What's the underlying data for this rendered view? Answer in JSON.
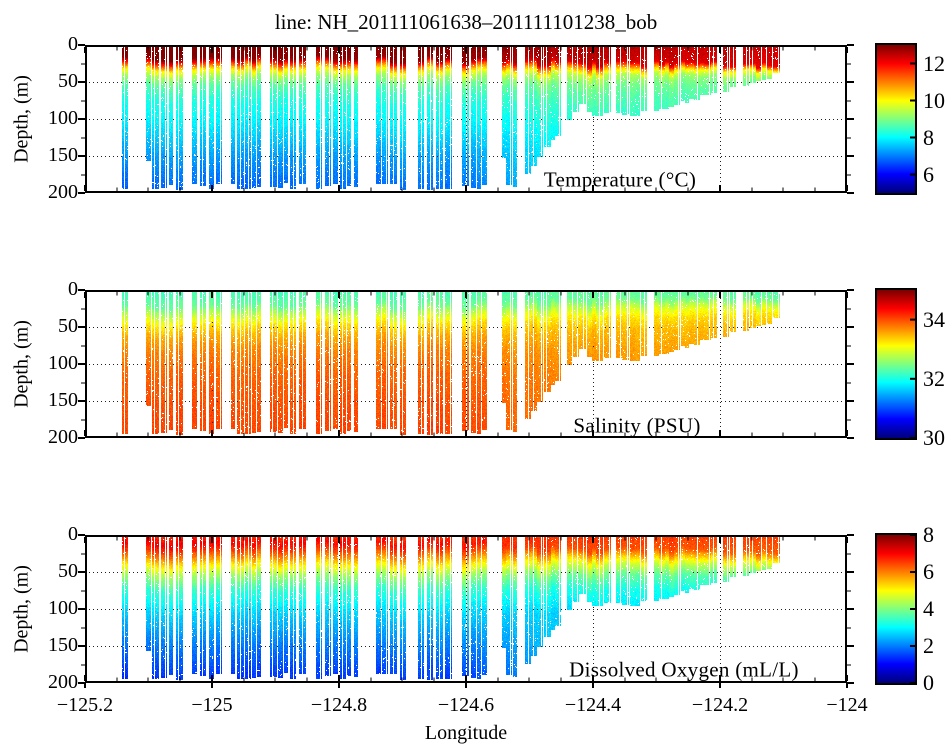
{
  "title": "line: NH_201111061638–201111101238_bob",
  "axes": {
    "xlabel": "Longitude",
    "ylabel": "Depth, (m)",
    "x_ticks": [
      -125.2,
      -125.0,
      -124.8,
      -124.6,
      -124.4,
      -124.2,
      -124.0
    ],
    "x_tick_labels": [
      "−125.2",
      "−125",
      "−124.8",
      "−124.6",
      "−124.4",
      "−124.2",
      "−124"
    ],
    "x_range": [
      -125.2,
      -124.0
    ],
    "y_ticks": [
      0,
      50,
      100,
      150,
      200
    ],
    "y_tick_labels": [
      "0",
      "50",
      "100",
      "150",
      "200"
    ],
    "y_range": [
      0,
      200
    ],
    "grid": "dotted",
    "background": "#ffffff",
    "axis_color": "#000000"
  },
  "section": {
    "lon_start": -125.142,
    "lon_end": -124.108,
    "bathymetry": [
      [
        -125.15,
        191
      ],
      [
        -125.05,
        192
      ],
      [
        -124.95,
        190
      ],
      [
        -124.85,
        191
      ],
      [
        -124.75,
        192
      ],
      [
        -124.65,
        191
      ],
      [
        -124.55,
        190
      ],
      [
        -124.52,
        188
      ],
      [
        -124.5,
        172
      ],
      [
        -124.475,
        140
      ],
      [
        -124.45,
        116
      ],
      [
        -124.43,
        96
      ],
      [
        -124.418,
        80
      ],
      [
        -124.408,
        86
      ],
      [
        -124.398,
        96
      ],
      [
        -124.38,
        93
      ],
      [
        -124.355,
        90
      ],
      [
        -124.335,
        92
      ],
      [
        -124.315,
        90
      ],
      [
        -124.295,
        87
      ],
      [
        -124.27,
        80
      ],
      [
        -124.245,
        73
      ],
      [
        -124.22,
        67
      ],
      [
        -124.195,
        60
      ],
      [
        -124.17,
        54
      ],
      [
        -124.15,
        50
      ],
      [
        -124.13,
        46
      ],
      [
        -124.115,
        41
      ],
      [
        -124.108,
        38
      ]
    ],
    "gaps": [
      [
        -125.1244,
        -125.1102
      ],
      [
        -125.0472,
        -125.0346
      ],
      [
        -124.9843,
        -124.9717
      ],
      [
        -124.9213,
        -124.9071
      ],
      [
        -124.8551,
        -124.8409
      ],
      [
        -124.7685,
        -124.7402
      ],
      [
        -124.6866,
        -124.674
      ],
      [
        -124.6252,
        -124.6126
      ],
      [
        -124.5638,
        -124.548
      ],
      [
        -124.515,
        -124.5039
      ],
      [
        -124.4551,
        -124.4425
      ],
      [
        -124.3764,
        -124.3669
      ],
      [
        -124.3165,
        -124.3055
      ],
      [
        -124.266,
        -124.2614
      ],
      [
        -124.2031,
        -124.1953
      ],
      [
        -124.1701,
        -124.1622
      ]
    ]
  },
  "chart_data": [
    {
      "type": "heatmap",
      "variable": "temperature",
      "label": "Temperature (°C)",
      "colormap": "jet",
      "clim": [
        5,
        13
      ],
      "colorbar_ticks": [
        6,
        8,
        10,
        12
      ],
      "colorbar_tick_labels": [
        "6",
        "8",
        "10",
        "12"
      ],
      "profile_anchors": [
        {
          "lon": -125.14,
          "z": [
            0,
            18,
            26,
            33,
            42,
            55,
            75,
            105,
            145,
            190
          ],
          "v": [
            13.2,
            13.0,
            11.5,
            10.2,
            9.3,
            8.7,
            8.2,
            7.9,
            7.3,
            6.8
          ]
        },
        {
          "lon": -124.6,
          "z": [
            0,
            20,
            28,
            36,
            46,
            60,
            80,
            110,
            150,
            190
          ],
          "v": [
            13.1,
            12.8,
            11.1,
            9.9,
            9.1,
            8.6,
            8.2,
            7.9,
            7.3,
            6.9
          ]
        },
        {
          "lon": -124.42,
          "z": [
            0,
            24,
            33,
            42,
            54,
            70,
            95,
            125
          ],
          "v": [
            12.7,
            12.4,
            10.7,
            9.5,
            9.0,
            8.7,
            8.4,
            8.1
          ]
        },
        {
          "lon": -124.11,
          "z": [
            0,
            26,
            34,
            44,
            58,
            85
          ],
          "v": [
            12.4,
            12.2,
            10.0,
            9.0,
            8.7,
            8.5
          ]
        }
      ]
    },
    {
      "type": "heatmap",
      "variable": "salinity",
      "label": "Salinity (PSU)",
      "colormap": "jet",
      "clim": [
        30,
        35
      ],
      "colorbar_ticks": [
        30,
        32,
        34
      ],
      "colorbar_tick_labels": [
        "30",
        "32",
        "34"
      ],
      "profile_anchors": [
        {
          "lon": -125.14,
          "z": [
            0,
            22,
            35,
            50,
            65,
            85,
            115,
            160,
            190
          ],
          "v": [
            32.2,
            32.35,
            32.8,
            33.25,
            33.55,
            33.75,
            33.9,
            34.0,
            34.05
          ]
        },
        {
          "lon": -124.6,
          "z": [
            0,
            20,
            32,
            46,
            62,
            82,
            112,
            155,
            190
          ],
          "v": [
            32.25,
            32.4,
            32.85,
            33.3,
            33.55,
            33.75,
            33.9,
            34.0,
            34.05
          ]
        },
        {
          "lon": -124.42,
          "z": [
            0,
            15,
            25,
            38,
            55,
            80,
            120
          ],
          "v": [
            32.3,
            32.42,
            32.8,
            33.2,
            33.45,
            33.6,
            33.7
          ]
        },
        {
          "lon": -124.11,
          "z": [
            0,
            12,
            20,
            30,
            45,
            80
          ],
          "v": [
            32.3,
            32.45,
            32.9,
            33.25,
            33.45,
            33.55
          ]
        }
      ]
    },
    {
      "type": "heatmap",
      "variable": "dissolved_oxygen",
      "label": "Dissolved Oxygen (mL/L)",
      "colormap": "jet",
      "clim": [
        0,
        8
      ],
      "colorbar_ticks": [
        0,
        2,
        4,
        6,
        8
      ],
      "colorbar_tick_labels": [
        "0",
        "2",
        "4",
        "6",
        "8"
      ],
      "profile_anchors": [
        {
          "lon": -125.14,
          "z": [
            0,
            12,
            22,
            32,
            42,
            55,
            75,
            105,
            145,
            190
          ],
          "v": [
            6.7,
            7.1,
            6.6,
            5.9,
            5.1,
            4.3,
            3.4,
            2.7,
            2.0,
            1.4
          ]
        },
        {
          "lon": -124.6,
          "z": [
            0,
            12,
            22,
            32,
            42,
            55,
            75,
            105,
            145,
            190
          ],
          "v": [
            6.6,
            6.9,
            6.4,
            5.7,
            5.0,
            4.2,
            3.4,
            2.7,
            2.1,
            1.5
          ]
        },
        {
          "lon": -124.42,
          "z": [
            0,
            20,
            30,
            40,
            55,
            75,
            105
          ],
          "v": [
            6.6,
            6.4,
            5.5,
            4.7,
            3.9,
            3.2,
            2.7
          ]
        },
        {
          "lon": -124.11,
          "z": [
            0,
            22,
            32,
            42,
            55,
            80
          ],
          "v": [
            6.5,
            6.3,
            5.3,
            4.4,
            3.6,
            3.0
          ]
        }
      ]
    }
  ]
}
